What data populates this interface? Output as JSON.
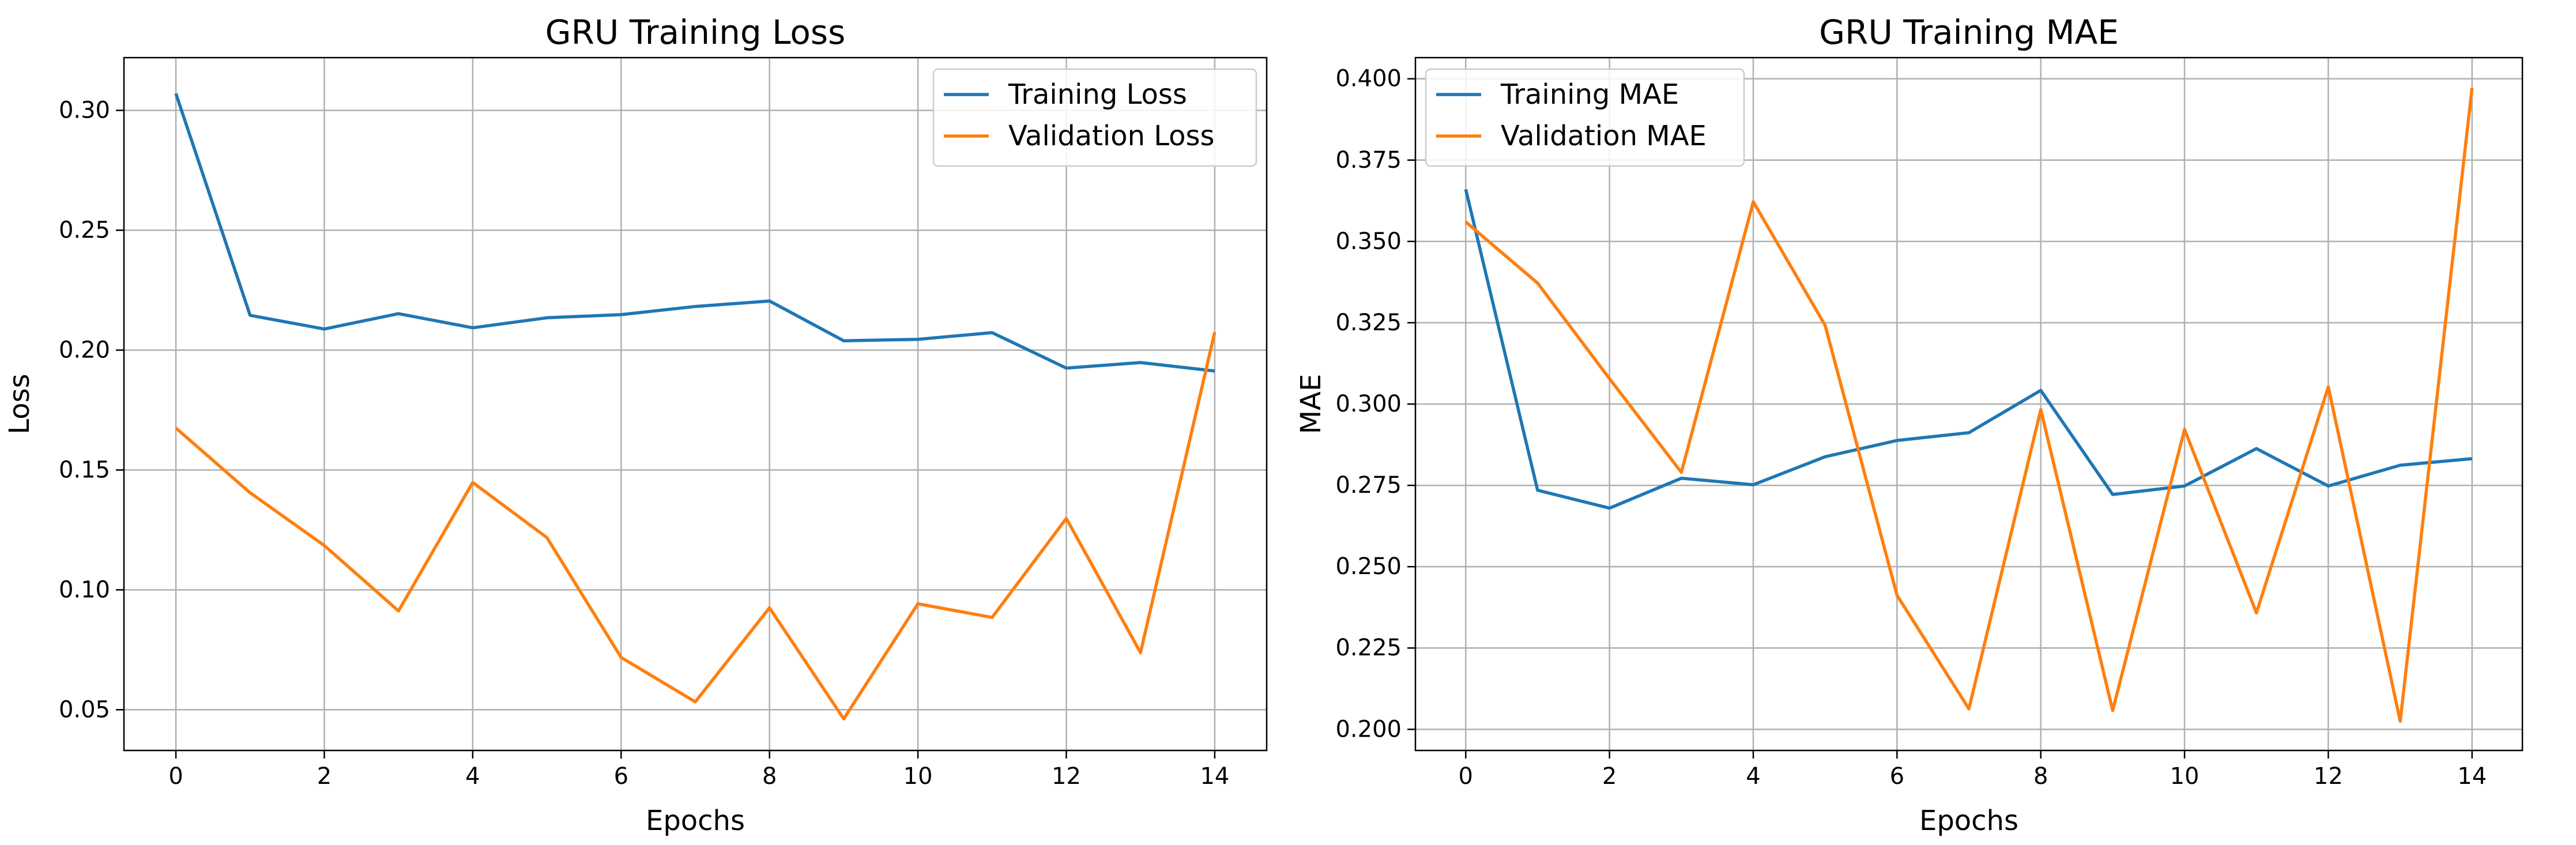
{
  "chart_data": [
    {
      "type": "line",
      "title": "GRU Training Loss",
      "xlabel": "Epochs",
      "ylabel": "Loss",
      "x": [
        0,
        1,
        2,
        3,
        4,
        5,
        6,
        7,
        8,
        9,
        10,
        11,
        12,
        13,
        14
      ],
      "xlim": [
        -0.7,
        14.7
      ],
      "ylim": [
        0.033,
        0.322
      ],
      "xticks": [
        0,
        2,
        4,
        6,
        8,
        10,
        12,
        14
      ],
      "xtick_labels": [
        "0",
        "2",
        "4",
        "6",
        "8",
        "10",
        "12",
        "14"
      ],
      "yticks": [
        0.05,
        0.1,
        0.15,
        0.2,
        0.25,
        0.3
      ],
      "ytick_labels": [
        "0.05",
        "0.10",
        "0.15",
        "0.20",
        "0.25",
        "0.30"
      ],
      "grid": true,
      "legend_position": "top-right",
      "series": [
        {
          "name": "Training Loss",
          "color": "#1f77b4",
          "values": [
            0.307,
            0.2145,
            0.2088,
            0.2152,
            0.2093,
            0.2135,
            0.2148,
            0.2182,
            0.2205,
            0.2039,
            0.2045,
            0.2073,
            0.1925,
            0.1948,
            0.1913
          ]
        },
        {
          "name": "Validation Loss",
          "color": "#ff7f0e",
          "values": [
            0.1675,
            0.1405,
            0.1185,
            0.0912,
            0.1448,
            0.1218,
            0.0718,
            0.0533,
            0.0925,
            0.0462,
            0.0942,
            0.0885,
            0.1298,
            0.0738,
            0.2075
          ]
        }
      ]
    },
    {
      "type": "line",
      "title": "GRU Training MAE",
      "xlabel": "Epochs",
      "ylabel": "MAE",
      "x": [
        0,
        1,
        2,
        3,
        4,
        5,
        6,
        7,
        8,
        9,
        10,
        11,
        12,
        13,
        14
      ],
      "xlim": [
        -0.7,
        14.7
      ],
      "ylim": [
        0.1935,
        0.4065
      ],
      "xticks": [
        0,
        2,
        4,
        6,
        8,
        10,
        12,
        14
      ],
      "xtick_labels": [
        "0",
        "2",
        "4",
        "6",
        "8",
        "10",
        "12",
        "14"
      ],
      "yticks": [
        0.2,
        0.225,
        0.25,
        0.275,
        0.3,
        0.325,
        0.35,
        0.375,
        0.4
      ],
      "ytick_labels": [
        "0.200",
        "0.225",
        "0.250",
        "0.275",
        "0.300",
        "0.325",
        "0.350",
        "0.375",
        "0.400"
      ],
      "grid": true,
      "legend_position": "top-left",
      "series": [
        {
          "name": "Training MAE",
          "color": "#1f77b4",
          "values": [
            0.366,
            0.2735,
            0.268,
            0.2772,
            0.2752,
            0.2838,
            0.2888,
            0.2912,
            0.3042,
            0.2722,
            0.2748,
            0.2863,
            0.2748,
            0.2812,
            0.2832
          ]
        },
        {
          "name": "Validation MAE",
          "color": "#ff7f0e",
          "values": [
            0.356,
            0.3372,
            0.3078,
            0.279,
            0.3622,
            0.3242,
            0.2412,
            0.2063,
            0.2983,
            0.2058,
            0.2922,
            0.2358,
            0.3053,
            0.2025,
            0.3972
          ]
        }
      ]
    }
  ]
}
